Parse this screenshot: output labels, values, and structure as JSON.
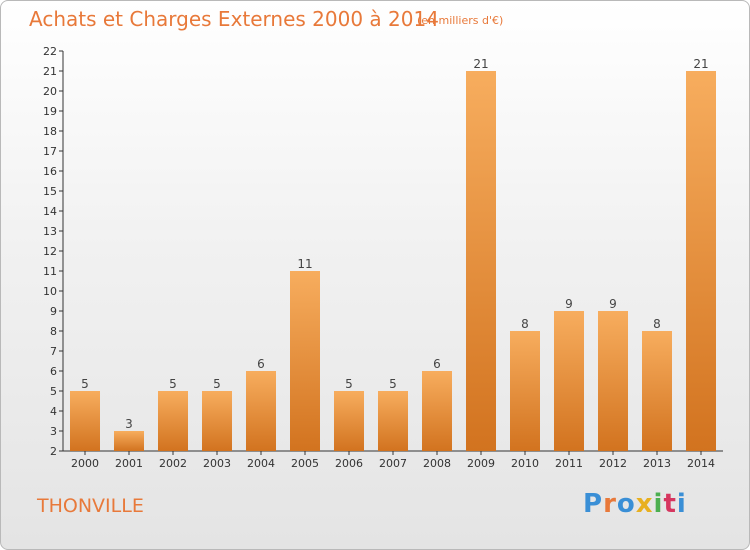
{
  "header": {
    "title": "Achats et Charges Externes 2000 à 2014",
    "subtitle": "(en milliers d'€)"
  },
  "footer": {
    "town": "THONVILLE",
    "logo_text": "Proxiti",
    "logo_colors": [
      "#3a8fd6",
      "#e8793a",
      "#3a8fd6",
      "#e8b020",
      "#4caf50",
      "#d6365f",
      "#3a8fd6"
    ]
  },
  "colors": {
    "bar": "#f0963c",
    "bar_top": "#f7ad5e",
    "bar_bottom": "#d2731f",
    "title": "#e8793a",
    "axis": "#333333"
  },
  "chart_data": {
    "type": "bar",
    "title": "Achats et Charges Externes 2000 à 2014",
    "categories": [
      "2000",
      "2001",
      "2002",
      "2003",
      "2004",
      "2005",
      "2006",
      "2007",
      "2008",
      "2009",
      "2010",
      "2011",
      "2012",
      "2013",
      "2014"
    ],
    "values": [
      5,
      3,
      5,
      5,
      6,
      11,
      5,
      5,
      6,
      21,
      8,
      9,
      9,
      8,
      21
    ],
    "data_labels": [
      "5",
      "3",
      "5",
      "5",
      "6",
      "11",
      "5",
      "5",
      "6",
      "21",
      "8",
      "9",
      "9",
      "8",
      "21"
    ],
    "ylim": [
      2,
      22
    ],
    "yticks": [
      "2",
      "3",
      "4",
      "5",
      "6",
      "7",
      "8",
      "9",
      "10",
      "11",
      "12",
      "13",
      "14",
      "15",
      "16",
      "17",
      "18",
      "19",
      "20",
      "21",
      "22"
    ],
    "grid": false,
    "xlabel": "",
    "ylabel": ""
  }
}
